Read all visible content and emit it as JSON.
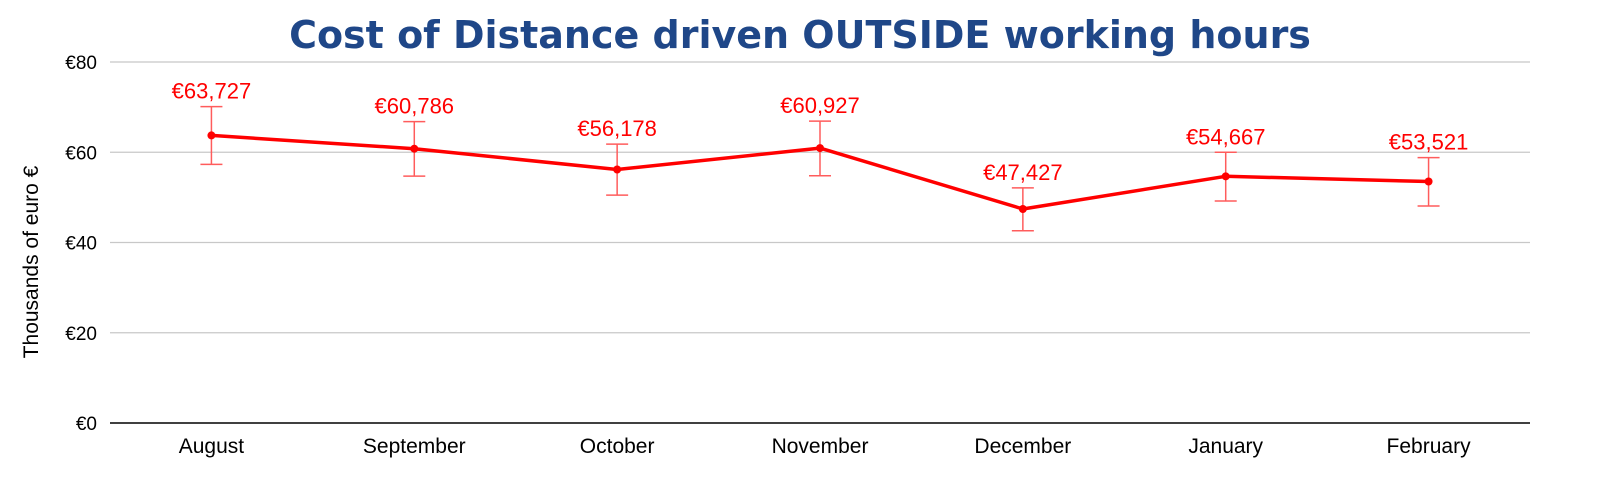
{
  "chart_data": {
    "type": "line",
    "title": "Cost of Distance driven OUTSIDE working hours",
    "xlabel": "",
    "ylabel": "Thousands of euro €",
    "categories": [
      "August",
      "September",
      "October",
      "November",
      "December",
      "January",
      "February"
    ],
    "series": [
      {
        "values": [
          63.727,
          60.786,
          56.178,
          60.927,
          47.427,
          54.667,
          53.521
        ],
        "data_labels": [
          "€63,727",
          "€60,786",
          "€56,178",
          "€60,927",
          "€47,427",
          "€54,667",
          "€53,521"
        ],
        "error_low": [
          57.3,
          54.7,
          50.5,
          54.8,
          42.6,
          49.2,
          48.1
        ],
        "error_high": [
          70.1,
          66.8,
          61.8,
          66.9,
          52.1,
          60.0,
          58.8
        ]
      }
    ],
    "y_ticks": [
      {
        "value": 0,
        "label": "€0"
      },
      {
        "value": 20,
        "label": "€20"
      },
      {
        "value": 40,
        "label": "€40"
      },
      {
        "value": 60,
        "label": "€60"
      },
      {
        "value": 80,
        "label": "€80"
      }
    ],
    "ylim": [
      0,
      80
    ],
    "grid": true,
    "legend": "none",
    "colors": {
      "title": "#1f4788",
      "line": "#ff0000",
      "data_label": "#ff0000",
      "error_bar": "#ff5c5c",
      "grid": "#c8c8c8",
      "axis": "#000000"
    }
  }
}
